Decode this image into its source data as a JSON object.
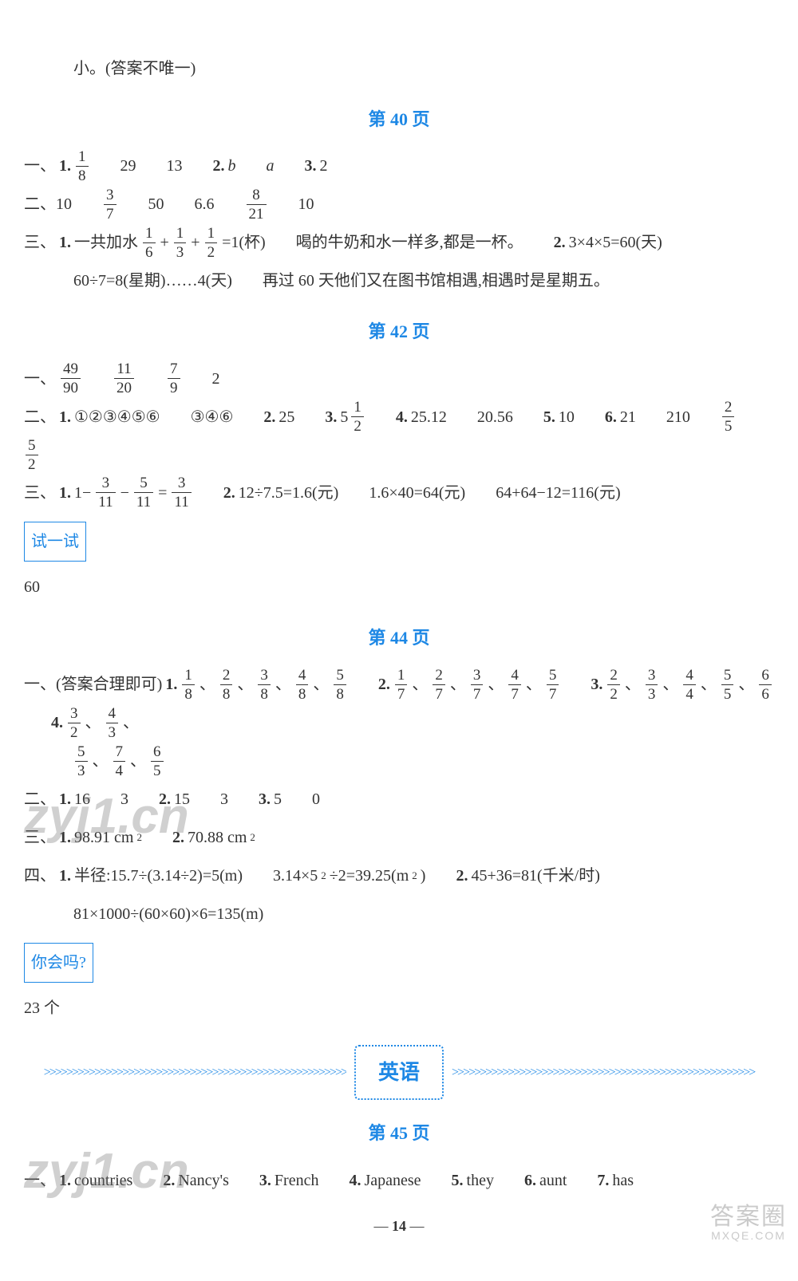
{
  "intro_line": "小。(答案不唯一)",
  "sections": [
    {
      "heading": "第 40 页",
      "blocks": [
        {
          "type": "row",
          "parts": [
            {
              "t": "一、",
              "b": false
            },
            {
              "t": "1. ",
              "b": true
            },
            {
              "frac": [
                "1",
                "8"
              ]
            },
            {
              "gap": "lg"
            },
            {
              "t": "29"
            },
            {
              "gap": "lg"
            },
            {
              "t": "13"
            },
            {
              "gap": "lg"
            },
            {
              "t": "2. ",
              "b": true
            },
            {
              "t": "b",
              "i": true
            },
            {
              "gap": "lg"
            },
            {
              "t": "a",
              "i": true
            },
            {
              "gap": "lg"
            },
            {
              "t": "3. ",
              "b": true
            },
            {
              "t": "2"
            }
          ]
        },
        {
          "type": "row",
          "parts": [
            {
              "t": "二、10"
            },
            {
              "gap": "lg"
            },
            {
              "frac": [
                "3",
                "7"
              ]
            },
            {
              "gap": "lg"
            },
            {
              "t": "50"
            },
            {
              "gap": "lg"
            },
            {
              "t": "6.6"
            },
            {
              "gap": "lg"
            },
            {
              "frac": [
                "8",
                "21"
              ]
            },
            {
              "gap": "lg"
            },
            {
              "t": "10"
            }
          ]
        },
        {
          "type": "row",
          "parts": [
            {
              "t": "三、",
              "b": false
            },
            {
              "t": "1. ",
              "b": true
            },
            {
              "t": "一共加水"
            },
            {
              "frac": [
                "1",
                "6"
              ]
            },
            {
              "t": "+"
            },
            {
              "frac": [
                "1",
                "3"
              ]
            },
            {
              "t": "+"
            },
            {
              "frac": [
                "1",
                "2"
              ]
            },
            {
              "t": "=1(杯)"
            },
            {
              "gap": "lg"
            },
            {
              "t": "喝的牛奶和水一样多,都是一杯。"
            },
            {
              "gap": "lg"
            },
            {
              "t": "2. ",
              "b": true
            },
            {
              "t": "3×4×5=60(天)"
            }
          ]
        },
        {
          "type": "row",
          "indent": true,
          "parts": [
            {
              "t": "60÷7=8(星期)……4(天)"
            },
            {
              "gap": "lg"
            },
            {
              "t": "再过 60 天他们又在图书馆相遇,相遇时是星期五。"
            }
          ]
        }
      ]
    },
    {
      "heading": "第 42 页",
      "blocks": [
        {
          "type": "row",
          "parts": [
            {
              "t": "一、"
            },
            {
              "frac": [
                "49",
                "90"
              ]
            },
            {
              "gap": "lg"
            },
            {
              "frac": [
                "11",
                "20"
              ]
            },
            {
              "gap": "lg"
            },
            {
              "frac": [
                "7",
                "9"
              ]
            },
            {
              "gap": "lg"
            },
            {
              "t": "2"
            }
          ]
        },
        {
          "type": "row",
          "parts": [
            {
              "t": "二、",
              "b": false
            },
            {
              "t": "1. ",
              "b": true
            },
            {
              "t": "①②③④⑤⑥"
            },
            {
              "gap": "lg"
            },
            {
              "t": "③④⑥"
            },
            {
              "gap": "lg"
            },
            {
              "t": "2. ",
              "b": true
            },
            {
              "t": "25"
            },
            {
              "gap": "lg"
            },
            {
              "t": "3. ",
              "b": true
            },
            {
              "mixed": {
                "whole": "5",
                "frac": [
                  "1",
                  "2"
                ]
              }
            },
            {
              "gap": "lg"
            },
            {
              "t": "4. ",
              "b": true
            },
            {
              "t": "25.12"
            },
            {
              "gap": "lg"
            },
            {
              "t": "20.56"
            },
            {
              "gap": "lg"
            },
            {
              "t": "5. ",
              "b": true
            },
            {
              "t": "10"
            },
            {
              "gap": "lg"
            },
            {
              "t": "6. ",
              "b": true
            },
            {
              "t": "21"
            },
            {
              "gap": "lg"
            },
            {
              "t": "210"
            },
            {
              "gap": "lg"
            },
            {
              "frac": [
                "2",
                "5"
              ]
            },
            {
              "gap": "lg"
            },
            {
              "frac": [
                "5",
                "2"
              ]
            }
          ]
        },
        {
          "type": "row",
          "parts": [
            {
              "t": "三、",
              "b": false
            },
            {
              "t": "1. ",
              "b": true
            },
            {
              "t": "1−"
            },
            {
              "frac": [
                "3",
                "11"
              ]
            },
            {
              "t": "−"
            },
            {
              "frac": [
                "5",
                "11"
              ]
            },
            {
              "t": "="
            },
            {
              "frac": [
                "3",
                "11"
              ]
            },
            {
              "gap": "lg"
            },
            {
              "t": "2. ",
              "b": true
            },
            {
              "t": "12÷7.5=1.6(元)"
            },
            {
              "gap": "lg"
            },
            {
              "t": "1.6×40=64(元)"
            },
            {
              "gap": "lg"
            },
            {
              "t": "64+64−12=116(元)"
            }
          ]
        },
        {
          "type": "box",
          "label": "试一试"
        },
        {
          "type": "row",
          "parts": [
            {
              "t": "60"
            }
          ]
        }
      ]
    },
    {
      "heading": "第 44 页",
      "blocks": [
        {
          "type": "row",
          "parts": [
            {
              "t": "一、(答案合理即可)"
            },
            {
              "t": "1. ",
              "b": true
            },
            {
              "frac": [
                "1",
                "8"
              ]
            },
            {
              "t": "、"
            },
            {
              "frac": [
                "2",
                "8"
              ]
            },
            {
              "t": "、"
            },
            {
              "frac": [
                "3",
                "8"
              ]
            },
            {
              "t": "、"
            },
            {
              "frac": [
                "4",
                "8"
              ]
            },
            {
              "t": "、"
            },
            {
              "frac": [
                "5",
                "8"
              ]
            },
            {
              "gap": "lg"
            },
            {
              "t": "2. ",
              "b": true
            },
            {
              "frac": [
                "1",
                "7"
              ]
            },
            {
              "t": "、"
            },
            {
              "frac": [
                "2",
                "7"
              ]
            },
            {
              "t": "、"
            },
            {
              "frac": [
                "3",
                "7"
              ]
            },
            {
              "t": "、"
            },
            {
              "frac": [
                "4",
                "7"
              ]
            },
            {
              "t": "、"
            },
            {
              "frac": [
                "5",
                "7"
              ]
            },
            {
              "gap": "lg"
            },
            {
              "t": "3. ",
              "b": true
            },
            {
              "frac": [
                "2",
                "2"
              ]
            },
            {
              "t": "、"
            },
            {
              "frac": [
                "3",
                "3"
              ]
            },
            {
              "t": "、"
            },
            {
              "frac": [
                "4",
                "4"
              ]
            },
            {
              "t": "、"
            },
            {
              "frac": [
                "5",
                "5"
              ]
            },
            {
              "t": "、"
            },
            {
              "frac": [
                "6",
                "6"
              ]
            },
            {
              "gap": "lg"
            },
            {
              "t": "4. ",
              "b": true
            },
            {
              "frac": [
                "3",
                "2"
              ]
            },
            {
              "t": "、"
            },
            {
              "frac": [
                "4",
                "3"
              ]
            },
            {
              "t": "、"
            }
          ]
        },
        {
          "type": "row",
          "indent": true,
          "parts": [
            {
              "frac": [
                "5",
                "3"
              ]
            },
            {
              "t": "、"
            },
            {
              "frac": [
                "7",
                "4"
              ]
            },
            {
              "t": "、"
            },
            {
              "frac": [
                "6",
                "5"
              ]
            }
          ]
        },
        {
          "type": "row",
          "parts": [
            {
              "t": "二、",
              "b": false
            },
            {
              "t": "1. ",
              "b": true
            },
            {
              "t": "16"
            },
            {
              "gap": "lg"
            },
            {
              "t": "3"
            },
            {
              "gap": "lg"
            },
            {
              "t": "2. ",
              "b": true
            },
            {
              "t": "15"
            },
            {
              "gap": "lg"
            },
            {
              "t": "3"
            },
            {
              "gap": "lg"
            },
            {
              "t": "3. ",
              "b": true
            },
            {
              "t": "5"
            },
            {
              "gap": "lg"
            },
            {
              "t": "0"
            }
          ]
        },
        {
          "type": "row",
          "parts": [
            {
              "t": "三、",
              "b": false
            },
            {
              "t": "1. ",
              "b": true
            },
            {
              "t": "98.91 cm"
            },
            {
              "sup": "2"
            },
            {
              "gap": "lg"
            },
            {
              "t": "2. ",
              "b": true
            },
            {
              "t": "70.88 cm"
            },
            {
              "sup": "2"
            }
          ]
        },
        {
          "type": "row",
          "parts": [
            {
              "t": "四、",
              "b": false
            },
            {
              "t": "1. ",
              "b": true
            },
            {
              "t": "半径:15.7÷(3.14÷2)=5(m)"
            },
            {
              "gap": "lg"
            },
            {
              "t": "3.14×5"
            },
            {
              "sup": "2"
            },
            {
              "t": "÷2=39.25(m"
            },
            {
              "sup": "2"
            },
            {
              "t": ")"
            },
            {
              "gap": "lg"
            },
            {
              "t": "2. ",
              "b": true
            },
            {
              "t": "45+36=81(千米/时)"
            }
          ]
        },
        {
          "type": "row",
          "indent": true,
          "parts": [
            {
              "t": "81×1000÷(60×60)×6=135(m)"
            }
          ]
        },
        {
          "type": "box",
          "label": "你会吗?"
        },
        {
          "type": "row",
          "parts": [
            {
              "t": "23 个"
            }
          ]
        }
      ]
    }
  ],
  "subject_divider": "英语",
  "after_divider": {
    "heading": "第 45 页",
    "blocks": [
      {
        "type": "row",
        "parts": [
          {
            "t": "一、",
            "b": false
          },
          {
            "t": "1. ",
            "b": true
          },
          {
            "t": "countries"
          },
          {
            "gap": "lg"
          },
          {
            "t": "2. ",
            "b": true
          },
          {
            "t": "Nancy's"
          },
          {
            "gap": "lg"
          },
          {
            "t": "3. ",
            "b": true
          },
          {
            "t": "French"
          },
          {
            "gap": "lg"
          },
          {
            "t": "4. ",
            "b": true
          },
          {
            "t": "Japanese"
          },
          {
            "gap": "lg"
          },
          {
            "t": "5. ",
            "b": true
          },
          {
            "t": "they"
          },
          {
            "gap": "lg"
          },
          {
            "t": "6. ",
            "b": true
          },
          {
            "t": "aunt"
          },
          {
            "gap": "lg"
          },
          {
            "t": "7. ",
            "b": true
          },
          {
            "t": "has"
          }
        ]
      }
    ]
  },
  "page_number": "14",
  "watermarks": {
    "top": "zyj1.cn",
    "bottom": "zyj1.cn",
    "stamp_big": "答案圈",
    "stamp_small": "MXQE.COM"
  },
  "chevrons": ">>>>>>>>>>>>>>>>>>>>>>>>>>>>>>>>>>>>>>>>>>>>>>>>>>>>>>"
}
